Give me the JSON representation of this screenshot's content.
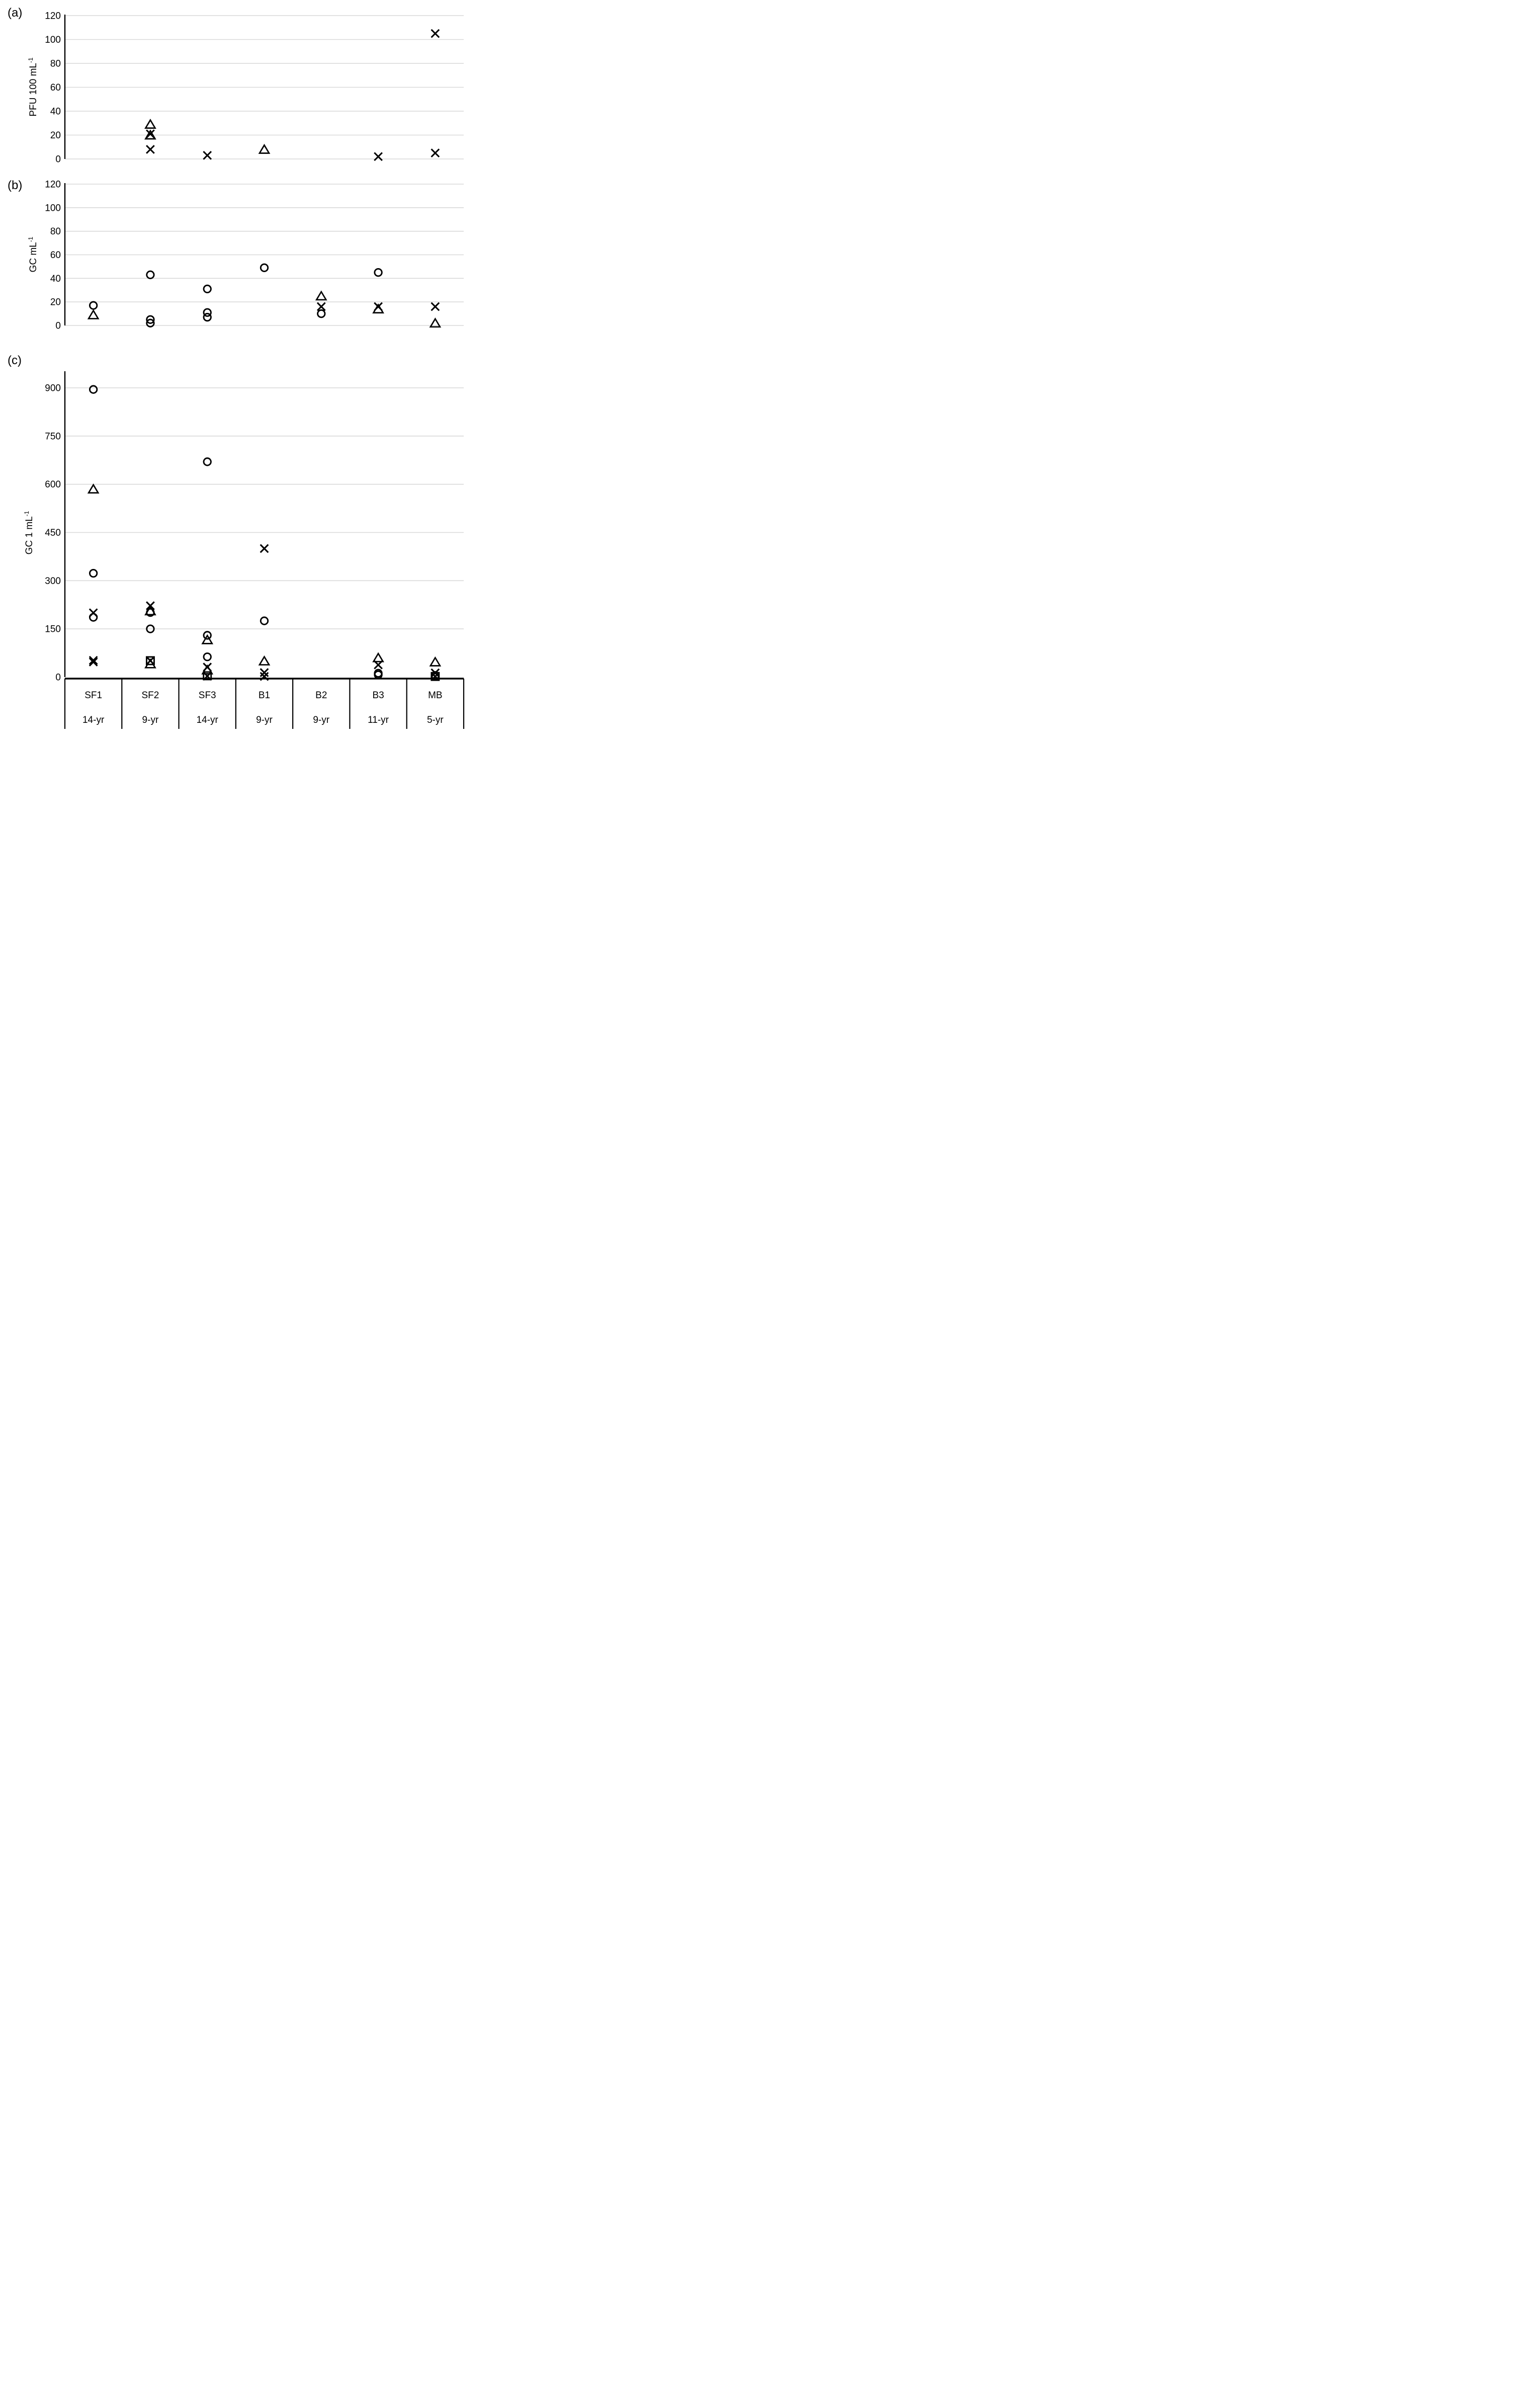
{
  "page": {
    "background": "#ffffff"
  },
  "colors": {
    "marker": "#000000",
    "gridline": "#d9d9d9",
    "axis": "#000000",
    "text": "#000000"
  },
  "marker_icons": {
    "circle": "open-circle-marker",
    "triangle": "open-triangle-marker",
    "x": "cross-marker",
    "square": "open-square-marker"
  },
  "categories": [
    {
      "site": "SF1",
      "age": "14-yr"
    },
    {
      "site": "SF2",
      "age": "9-yr"
    },
    {
      "site": "SF3",
      "age": "14-yr"
    },
    {
      "site": "B1",
      "age": "9-yr"
    },
    {
      "site": "B2",
      "age": "9-yr"
    },
    {
      "site": "B3",
      "age": "11-yr"
    },
    {
      "site": "MB",
      "age": "5-yr"
    }
  ],
  "chart_data": [
    {
      "panel": "(a)",
      "type": "scatter",
      "ylabel": "PFU 100 mL",
      "ylabel_sup": "-1",
      "xlabel": "",
      "ylim": [
        0,
        120
      ],
      "yticks": [
        0,
        20,
        40,
        60,
        80,
        100,
        120
      ],
      "grid": true,
      "legend": "none",
      "points": [
        {
          "category": "SF2",
          "marker": "triangle",
          "value": 29
        },
        {
          "category": "SF2",
          "marker": "x",
          "value": 21
        },
        {
          "category": "SF2",
          "marker": "triangle",
          "value": 20
        },
        {
          "category": "SF2",
          "marker": "x",
          "value": 8
        },
        {
          "category": "SF3",
          "marker": "x",
          "value": 3
        },
        {
          "category": "B1",
          "marker": "triangle",
          "value": 8
        },
        {
          "category": "B3",
          "marker": "x",
          "value": 2
        },
        {
          "category": "MB",
          "marker": "x",
          "value": 105
        },
        {
          "category": "MB",
          "marker": "x",
          "value": 5
        }
      ]
    },
    {
      "panel": "(b)",
      "type": "scatter",
      "ylabel": "GC mL",
      "ylabel_sup": "-1",
      "xlabel": "",
      "ylim": [
        0,
        120
      ],
      "yticks": [
        0,
        20,
        40,
        60,
        80,
        100,
        120
      ],
      "grid": true,
      "legend": "none",
      "points": [
        {
          "category": "SF1",
          "marker": "circle",
          "value": 17
        },
        {
          "category": "SF1",
          "marker": "triangle",
          "value": 9
        },
        {
          "category": "SF2",
          "marker": "circle",
          "value": 43
        },
        {
          "category": "SF2",
          "marker": "circle",
          "value": 5
        },
        {
          "category": "SF2",
          "marker": "circle",
          "value": 2
        },
        {
          "category": "SF3",
          "marker": "circle",
          "value": 31
        },
        {
          "category": "SF3",
          "marker": "circle",
          "value": 11
        },
        {
          "category": "SF3",
          "marker": "circle",
          "value": 7
        },
        {
          "category": "B1",
          "marker": "circle",
          "value": 49
        },
        {
          "category": "B2",
          "marker": "triangle",
          "value": 25
        },
        {
          "category": "B2",
          "marker": "x",
          "value": 16
        },
        {
          "category": "B2",
          "marker": "circle",
          "value": 10
        },
        {
          "category": "B3",
          "marker": "circle",
          "value": 45
        },
        {
          "category": "B3",
          "marker": "x",
          "value": 16
        },
        {
          "category": "B3",
          "marker": "triangle",
          "value": 14
        },
        {
          "category": "MB",
          "marker": "x",
          "value": 16
        },
        {
          "category": "MB",
          "marker": "triangle",
          "value": 2
        }
      ]
    },
    {
      "panel": "(c)",
      "type": "scatter",
      "ylabel": "GC 1 mL",
      "ylabel_sup": "-1",
      "xlabel": "",
      "ylim": [
        0,
        900
      ],
      "yticks": [
        0,
        150,
        300,
        450,
        600,
        750,
        900
      ],
      "grid": true,
      "legend": "none",
      "points": [
        {
          "category": "SF1",
          "marker": "circle",
          "value": 895
        },
        {
          "category": "SF1",
          "marker": "triangle",
          "value": 585
        },
        {
          "category": "SF1",
          "marker": "circle",
          "value": 323
        },
        {
          "category": "SF1",
          "marker": "x",
          "value": 200
        },
        {
          "category": "SF1",
          "marker": "circle",
          "value": 186
        },
        {
          "category": "SF1",
          "marker": "x",
          "value": 52
        },
        {
          "category": "SF1",
          "marker": "x",
          "value": 47
        },
        {
          "category": "SF2",
          "marker": "x",
          "value": 222
        },
        {
          "category": "SF2",
          "marker": "triangle",
          "value": 206
        },
        {
          "category": "SF2",
          "marker": "circle",
          "value": 201
        },
        {
          "category": "SF2",
          "marker": "circle",
          "value": 150
        },
        {
          "category": "SF2",
          "marker": "square",
          "value": 51
        },
        {
          "category": "SF2",
          "marker": "x",
          "value": 51
        },
        {
          "category": "SF2",
          "marker": "triangle",
          "value": 41
        },
        {
          "category": "SF3",
          "marker": "circle",
          "value": 670
        },
        {
          "category": "SF3",
          "marker": "circle",
          "value": 130
        },
        {
          "category": "SF3",
          "marker": "triangle",
          "value": 116
        },
        {
          "category": "SF3",
          "marker": "circle",
          "value": 63
        },
        {
          "category": "SF3",
          "marker": "x",
          "value": 31
        },
        {
          "category": "SF3",
          "marker": "triangle",
          "value": 22
        },
        {
          "category": "SF3",
          "marker": "square",
          "value": 4
        },
        {
          "category": "SF3",
          "marker": "x",
          "value": 3
        },
        {
          "category": "B1",
          "marker": "x",
          "value": 400
        },
        {
          "category": "B1",
          "marker": "circle",
          "value": 175
        },
        {
          "category": "B1",
          "marker": "triangle",
          "value": 50
        },
        {
          "category": "B1",
          "marker": "x",
          "value": 14
        },
        {
          "category": "B1",
          "marker": "x",
          "value": 2
        },
        {
          "category": "B3",
          "marker": "triangle",
          "value": 60
        },
        {
          "category": "B3",
          "marker": "x",
          "value": 38
        },
        {
          "category": "B3",
          "marker": "circle",
          "value": 12
        },
        {
          "category": "B3",
          "marker": "circle",
          "value": 7
        },
        {
          "category": "MB",
          "marker": "triangle",
          "value": 47
        },
        {
          "category": "MB",
          "marker": "x",
          "value": 13
        },
        {
          "category": "MB",
          "marker": "circle",
          "value": 5
        },
        {
          "category": "MB",
          "marker": "square",
          "value": 2
        },
        {
          "category": "MB",
          "marker": "x",
          "value": 2
        }
      ]
    }
  ]
}
